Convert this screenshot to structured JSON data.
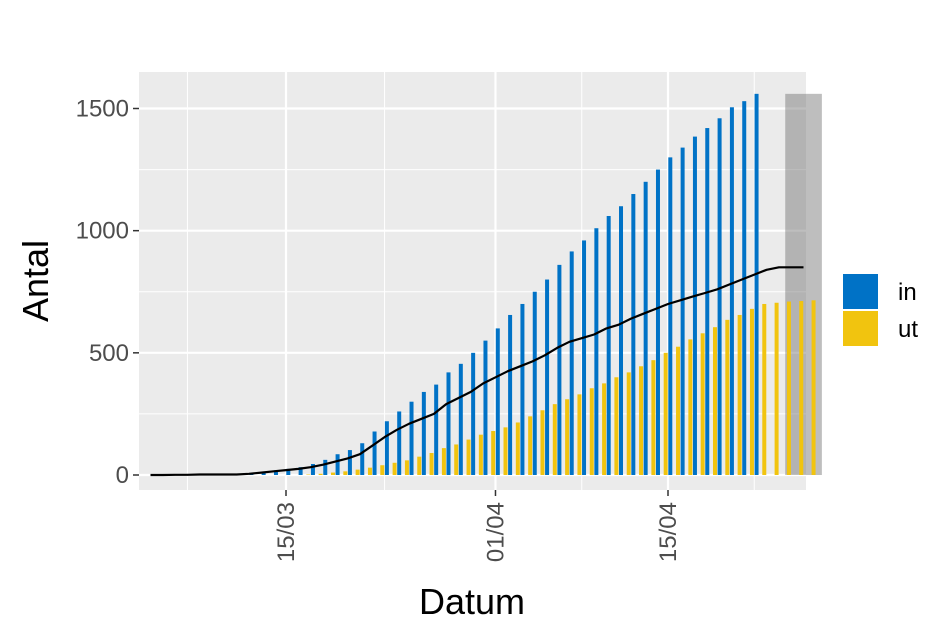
{
  "chart_data": {
    "type": "bar",
    "title": "",
    "xlabel": "Datum",
    "ylabel": "Antal",
    "ylim": [
      -70,
      1610
    ],
    "x_ticks": [
      "15/03",
      "01/04",
      "15/04"
    ],
    "y_ticks": [
      0,
      500,
      1000,
      1500
    ],
    "grid": true,
    "legend_position": "right",
    "x_dates": [
      "2020-03-04",
      "2020-03-05",
      "2020-03-06",
      "2020-03-07",
      "2020-03-08",
      "2020-03-09",
      "2020-03-10",
      "2020-03-11",
      "2020-03-12",
      "2020-03-13",
      "2020-03-14",
      "2020-03-15",
      "2020-03-16",
      "2020-03-17",
      "2020-03-18",
      "2020-03-19",
      "2020-03-20",
      "2020-03-21",
      "2020-03-22",
      "2020-03-23",
      "2020-03-24",
      "2020-03-25",
      "2020-03-26",
      "2020-03-27",
      "2020-03-28",
      "2020-03-29",
      "2020-03-30",
      "2020-03-31",
      "2020-04-01",
      "2020-04-02",
      "2020-04-03",
      "2020-04-04",
      "2020-04-05",
      "2020-04-06",
      "2020-04-07",
      "2020-04-08",
      "2020-04-09",
      "2020-04-10",
      "2020-04-11",
      "2020-04-12",
      "2020-04-13",
      "2020-04-14",
      "2020-04-15",
      "2020-04-16",
      "2020-04-17",
      "2020-04-18",
      "2020-04-19",
      "2020-04-20",
      "2020-04-21",
      "2020-04-22",
      "2020-04-23",
      "2020-04-24",
      "2020-04-25",
      "2020-04-26",
      "2020-04-27"
    ],
    "highlight_range": [
      "2020-04-25",
      "2020-04-27"
    ],
    "series": [
      {
        "name": "in",
        "color": "#0072C6",
        "values": [
          0,
          0,
          0,
          0,
          0,
          0,
          0,
          2,
          8,
          14,
          19,
          25,
          32,
          45,
          62,
          85,
          102,
          130,
          178,
          220,
          260,
          300,
          340,
          370,
          420,
          455,
          500,
          550,
          600,
          655,
          700,
          750,
          800,
          860,
          915,
          960,
          1010,
          1060,
          1100,
          1150,
          1200,
          1250,
          1300,
          1340,
          1385,
          1420,
          1460,
          1505,
          1530,
          1560,
          0,
          0,
          0,
          0,
          0
        ]
      },
      {
        "name": "ut",
        "color": "#F1C40F",
        "values": [
          0,
          0,
          0,
          0,
          0,
          0,
          0,
          0,
          0,
          0,
          0,
          0,
          0,
          2,
          5,
          10,
          15,
          22,
          30,
          40,
          50,
          60,
          75,
          90,
          110,
          125,
          145,
          165,
          180,
          195,
          215,
          240,
          265,
          290,
          310,
          330,
          355,
          375,
          400,
          420,
          445,
          470,
          500,
          525,
          555,
          580,
          605,
          635,
          655,
          680,
          700,
          705,
          710,
          712,
          715
        ]
      },
      {
        "name": "",
        "type": "line",
        "color": "#000000",
        "values": [
          0,
          0,
          1,
          1,
          2,
          2,
          2,
          2,
          5,
          10,
          15,
          20,
          25,
          32,
          42,
          55,
          68,
          85,
          120,
          155,
          185,
          210,
          230,
          250,
          290,
          315,
          340,
          375,
          400,
          425,
          445,
          465,
          490,
          520,
          545,
          560,
          575,
          600,
          615,
          640,
          660,
          680,
          700,
          715,
          730,
          745,
          760,
          780,
          800,
          820,
          840,
          850,
          850,
          850,
          850
        ]
      }
    ]
  }
}
